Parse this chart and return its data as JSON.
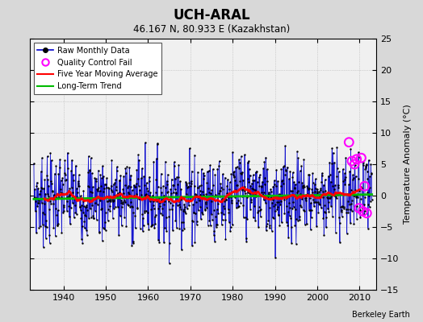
{
  "title": "UCH-ARAL",
  "subtitle": "46.167 N, 80.933 E (Kazakhstan)",
  "ylabel": "Temperature Anomaly (°C)",
  "attribution": "Berkeley Earth",
  "xlim": [
    1932,
    2014
  ],
  "ylim": [
    -15,
    25
  ],
  "yticks": [
    -15,
    -10,
    -5,
    0,
    5,
    10,
    15,
    20,
    25
  ],
  "xticks": [
    1940,
    1950,
    1960,
    1970,
    1980,
    1990,
    2000,
    2010
  ],
  "background_color": "#d8d8d8",
  "plot_bg_color": "#f0f0f0",
  "raw_line_color": "#0000cc",
  "raw_marker_color": "#000000",
  "moving_avg_color": "#ff0000",
  "trend_color": "#00bb00",
  "qc_fail_color": "#ff00ff",
  "seed": 7,
  "years_start": 1933,
  "years_end": 2013,
  "noise_scale": 3.2,
  "trend_slope": 0.008,
  "qc_times": [
    2007.5,
    2008.2,
    2008.8,
    2009.3,
    2009.9,
    2010.4,
    2010.8,
    2011.2,
    2011.7
  ],
  "qc_vals": [
    8.5,
    5.5,
    5.0,
    5.8,
    -2.0,
    6.0,
    -2.5,
    1.5,
    -2.8
  ]
}
